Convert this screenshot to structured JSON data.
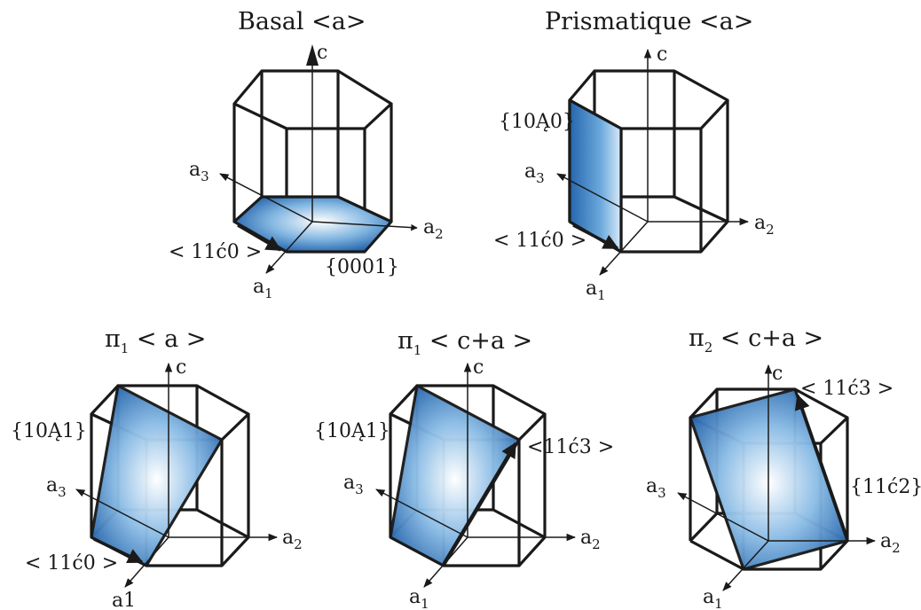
{
  "colors": {
    "plane_edge": "#1f5fa8",
    "plane_mid": "#6aa8dc",
    "plane_center": "#ffffff",
    "line": "#1a1a1a"
  },
  "panels": [
    {
      "id": "basal",
      "title": "Basal <a>",
      "axes": {
        "c": "c",
        "a1": "a",
        "a1_sub": "1",
        "a2": "a",
        "a2_sub": "2",
        "a3": "a",
        "a3_sub": "3"
      },
      "plane_label": "{0001}",
      "direction_label": "< 11ć0 >"
    },
    {
      "id": "prismatic",
      "title": "Prismatique <a>",
      "axes": {
        "c": "c",
        "a1": "a",
        "a1_sub": "1",
        "a2": "a",
        "a2_sub": "2",
        "a3": "a",
        "a3_sub": "3"
      },
      "plane_label": "{10Ą0}",
      "direction_label": "< 11ć0 >"
    },
    {
      "id": "pyr1a",
      "title_sym": "π",
      "title_sub": "1",
      "title_rest": " < a >",
      "axes": {
        "c": "c",
        "a1": "a1",
        "a2": "a",
        "a2_sub": "2",
        "a3": "a",
        "a3_sub": "3"
      },
      "plane_label": "{10Ą1}",
      "direction_label": "< 11ć0 >"
    },
    {
      "id": "pyr1ca",
      "title_sym": "π",
      "title_sub": "1",
      "title_rest": " < c+a >",
      "axes": {
        "c": "c",
        "a1": "a",
        "a1_sub": "1",
        "a2": "a",
        "a2_sub": "2",
        "a3": "a",
        "a3_sub": "3"
      },
      "plane_label": "{10Ą1}",
      "direction_label": "<11ć3 >"
    },
    {
      "id": "pyr2ca",
      "title_sym": "π",
      "title_sub": "2",
      "title_rest": " < c+a >",
      "axes": {
        "c": "c",
        "a1": "a",
        "a1_sub": "1",
        "a2": "a",
        "a2_sub": "2",
        "a3": "a",
        "a3_sub": "3"
      },
      "plane_label": "{11ć2}",
      "direction_label": "< 11ć3 >"
    }
  ]
}
